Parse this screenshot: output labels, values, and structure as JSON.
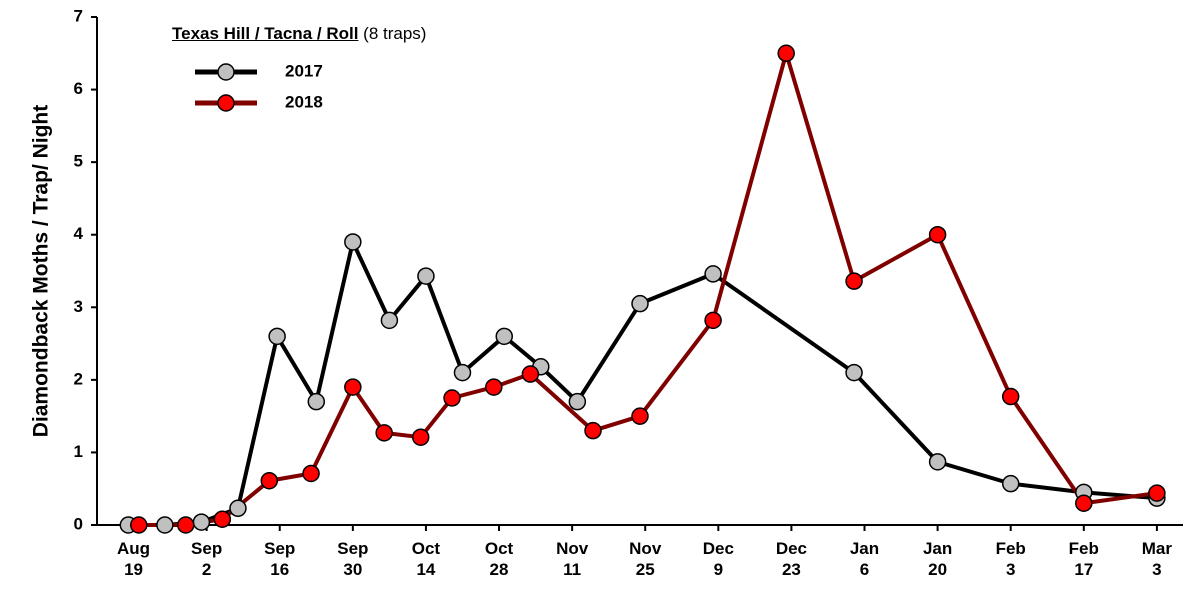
{
  "chart_data": {
    "type": "line",
    "title": "Texas Hill / Tacna / Roll",
    "subtitle": "(8 traps)",
    "y_label": "Diamondback Moths / Trap/ Night",
    "xlim": [
      -7,
      201
    ],
    "xticks": [
      {
        "value": 0,
        "label": "Aug 19"
      },
      {
        "value": 14,
        "label": "Sep 2"
      },
      {
        "value": 28,
        "label": "Sep 16"
      },
      {
        "value": 42,
        "label": "Sep 30"
      },
      {
        "value": 56,
        "label": "Oct 14"
      },
      {
        "value": 70,
        "label": "Oct 28"
      },
      {
        "value": 84,
        "label": "Nov 11"
      },
      {
        "value": 98,
        "label": "Nov 25"
      },
      {
        "value": 112,
        "label": "Dec 9"
      },
      {
        "value": 126,
        "label": "Dec 23"
      },
      {
        "value": 140,
        "label": "Jan 6"
      },
      {
        "value": 154,
        "label": "Jan 20"
      },
      {
        "value": 168,
        "label": "Feb 3"
      },
      {
        "value": 182,
        "label": "Feb 17"
      },
      {
        "value": 196,
        "label": "Mar 3"
      }
    ],
    "ylim": [
      0,
      7
    ],
    "yticks": [
      0,
      1,
      2,
      3,
      4,
      5,
      6,
      7
    ],
    "series": [
      {
        "name": "2017",
        "color": "#000000",
        "marker_color": "#c0c0c0",
        "x": [
          -1,
          6,
          13,
          20,
          27.5,
          35,
          42,
          49,
          56,
          63,
          71,
          78,
          85,
          97,
          111,
          138,
          154,
          168,
          182,
          196
        ],
        "values": [
          0,
          0,
          0.04,
          0.23,
          2.6,
          1.7,
          3.9,
          2.82,
          3.43,
          2.1,
          2.6,
          2.18,
          1.7,
          3.05,
          3.46,
          2.1,
          0.87,
          0.57,
          0.45,
          0.37
        ]
      },
      {
        "name": "2018",
        "color": "#800000",
        "marker_color": "#ff0000",
        "x": [
          1,
          10,
          17,
          26,
          34,
          42,
          48,
          55,
          61,
          69,
          76,
          88,
          97,
          111,
          125,
          138,
          154,
          168,
          182,
          196
        ],
        "values": [
          0,
          0,
          0.08,
          0.61,
          0.71,
          1.9,
          1.27,
          1.21,
          1.75,
          1.9,
          2.08,
          1.3,
          1.5,
          2.82,
          6.5,
          3.36,
          4.0,
          1.77,
          0.3,
          0.44
        ]
      }
    ]
  }
}
